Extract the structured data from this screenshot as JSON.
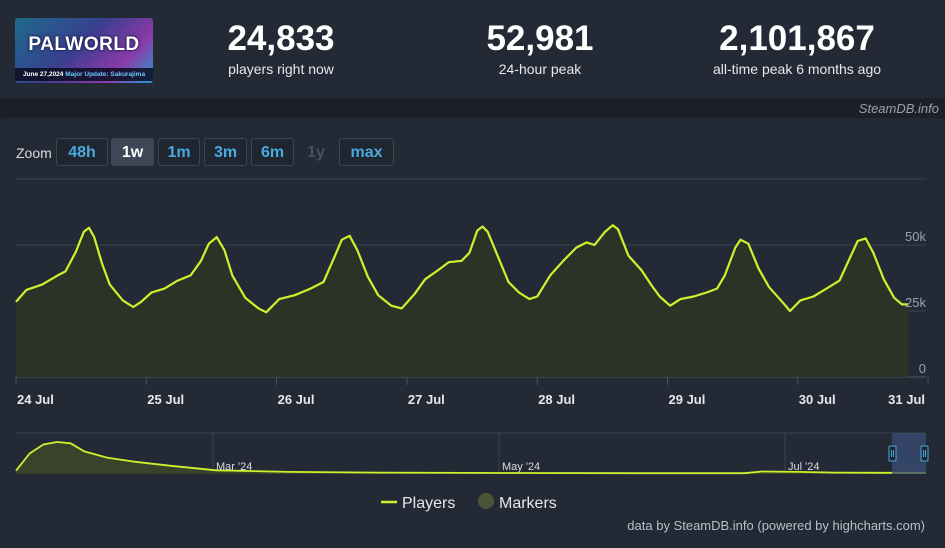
{
  "game": {
    "logo_title": "PALWORLD",
    "logo_date": "June 27,2024",
    "logo_update": "Major Update: Sakurajima"
  },
  "stats": [
    {
      "value": "24,833",
      "label": "players right now"
    },
    {
      "value": "52,981",
      "label": "24-hour peak"
    },
    {
      "value": "2,101,867",
      "label": "all-time peak 6 months ago"
    }
  ],
  "credit_top": "SteamDB.info",
  "zoom": {
    "label": "Zoom",
    "buttons": [
      {
        "label": "48h",
        "state": "normal"
      },
      {
        "label": "1w",
        "state": "active"
      },
      {
        "label": "1m",
        "state": "normal"
      },
      {
        "label": "3m",
        "state": "normal"
      },
      {
        "label": "6m",
        "state": "normal"
      },
      {
        "label": "1y",
        "state": "disabled"
      },
      {
        "label": "max",
        "state": "normal"
      }
    ]
  },
  "colors": {
    "line": "#ccf22e",
    "area": "#2c3426",
    "marker": "#4a5436",
    "grid": "#3a4250",
    "navigator_mask": "#3a4d78"
  },
  "chart_data": {
    "type": "line",
    "series": [
      {
        "name": "Players",
        "points": [
          [
            0,
            28500
          ],
          [
            0.08,
            33000
          ],
          [
            0.2,
            35000
          ],
          [
            0.32,
            38500
          ],
          [
            0.38,
            40000
          ],
          [
            0.46,
            47500
          ],
          [
            0.52,
            55000
          ],
          [
            0.56,
            56500
          ],
          [
            0.6,
            53000
          ],
          [
            0.66,
            43000
          ],
          [
            0.72,
            35000
          ],
          [
            0.82,
            29000
          ],
          [
            0.9,
            26500
          ],
          [
            0.96,
            28500
          ],
          [
            1.04,
            32000
          ],
          [
            1.14,
            33500
          ],
          [
            1.24,
            36500
          ],
          [
            1.34,
            38500
          ],
          [
            1.42,
            44000
          ],
          [
            1.48,
            50500
          ],
          [
            1.54,
            53000
          ],
          [
            1.6,
            48000
          ],
          [
            1.66,
            38500
          ],
          [
            1.76,
            30000
          ],
          [
            1.86,
            26000
          ],
          [
            1.92,
            24500
          ],
          [
            2.02,
            29500
          ],
          [
            2.14,
            31000
          ],
          [
            2.26,
            33500
          ],
          [
            2.36,
            36000
          ],
          [
            2.44,
            45000
          ],
          [
            2.5,
            52000
          ],
          [
            2.56,
            53500
          ],
          [
            2.62,
            48000
          ],
          [
            2.7,
            38000
          ],
          [
            2.78,
            31000
          ],
          [
            2.88,
            27000
          ],
          [
            2.96,
            26000
          ],
          [
            3.06,
            31500
          ],
          [
            3.14,
            37000
          ],
          [
            3.24,
            40500
          ],
          [
            3.32,
            43500
          ],
          [
            3.42,
            44000
          ],
          [
            3.48,
            47000
          ],
          [
            3.54,
            55500
          ],
          [
            3.58,
            57000
          ],
          [
            3.62,
            55000
          ],
          [
            3.7,
            45500
          ],
          [
            3.78,
            36000
          ],
          [
            3.86,
            32000
          ],
          [
            3.94,
            29500
          ],
          [
            4.0,
            30500
          ],
          [
            4.1,
            38500
          ],
          [
            4.2,
            44000
          ],
          [
            4.3,
            49000
          ],
          [
            4.38,
            51000
          ],
          [
            4.44,
            50000
          ],
          [
            4.52,
            55000
          ],
          [
            4.58,
            57500
          ],
          [
            4.62,
            56000
          ],
          [
            4.7,
            46000
          ],
          [
            4.8,
            40500
          ],
          [
            4.88,
            34500
          ],
          [
            4.94,
            30500
          ],
          [
            5.02,
            27000
          ],
          [
            5.1,
            29500
          ],
          [
            5.2,
            30500
          ],
          [
            5.3,
            32000
          ],
          [
            5.38,
            33500
          ],
          [
            5.44,
            38500
          ],
          [
            5.52,
            49000
          ],
          [
            5.56,
            52000
          ],
          [
            5.62,
            50500
          ],
          [
            5.7,
            41000
          ],
          [
            5.78,
            34000
          ],
          [
            5.88,
            28500
          ],
          [
            5.94,
            25000
          ],
          [
            6.02,
            29000
          ],
          [
            6.12,
            30500
          ],
          [
            6.22,
            33500
          ],
          [
            6.32,
            36500
          ],
          [
            6.38,
            43000
          ],
          [
            6.46,
            51500
          ],
          [
            6.52,
            52500
          ],
          [
            6.58,
            47000
          ],
          [
            6.66,
            37000
          ],
          [
            6.74,
            30000
          ],
          [
            6.8,
            27500
          ],
          [
            6.85,
            27500
          ]
        ]
      }
    ],
    "x_ticks": [
      "24 Jul",
      "25 Jul",
      "26 Jul",
      "27 Jul",
      "28 Jul",
      "29 Jul",
      "30 Jul",
      "31 Jul"
    ],
    "y_ticks": [
      "0",
      "25k",
      "50k"
    ],
    "ylim": [
      0,
      75000
    ],
    "legend": [
      "Players",
      "Markers"
    ],
    "legend_position": "bottom-center",
    "grid": true,
    "navigator": {
      "labels": [
        "Mar '24",
        "May '24",
        "Jul '24"
      ],
      "points": [
        [
          0,
          0.08
        ],
        [
          0.015,
          0.5
        ],
        [
          0.03,
          0.72
        ],
        [
          0.045,
          0.78
        ],
        [
          0.06,
          0.75
        ],
        [
          0.075,
          0.55
        ],
        [
          0.1,
          0.4
        ],
        [
          0.13,
          0.3
        ],
        [
          0.17,
          0.2
        ],
        [
          0.22,
          0.09
        ],
        [
          0.3,
          0.05
        ],
        [
          0.4,
          0.035
        ],
        [
          0.55,
          0.025
        ],
        [
          0.7,
          0.02
        ],
        [
          0.8,
          0.02
        ],
        [
          0.82,
          0.06
        ],
        [
          0.86,
          0.05
        ],
        [
          0.9,
          0.035
        ],
        [
          0.95,
          0.03
        ],
        [
          1.0,
          0.03
        ]
      ]
    }
  },
  "credit_bottom": "data by SteamDB.info (powered by highcharts.com)"
}
